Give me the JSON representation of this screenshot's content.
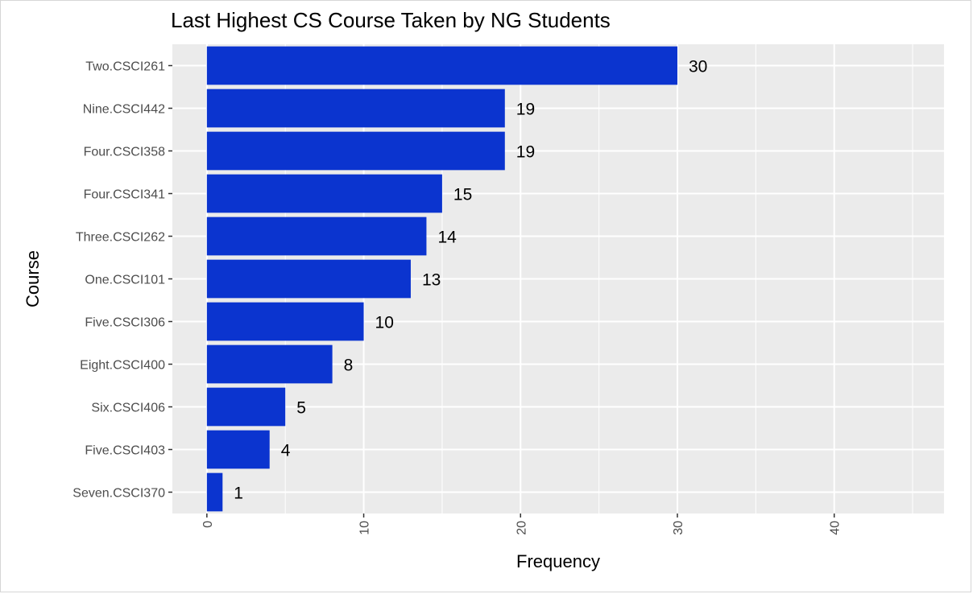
{
  "chart_data": {
    "type": "bar",
    "orientation": "horizontal",
    "title": "Last Highest CS Course Taken by NG Students",
    "xlabel": "Frequency",
    "ylabel": "Course",
    "categories": [
      "Two.CSCI261",
      "Nine.CSCI442",
      "Four.CSCI358",
      "Four.CSCI341",
      "Three.CSCI262",
      "One.CSCI101",
      "Five.CSCI306",
      "Eight.CSCI400",
      "Six.CSCI406",
      "Five.CSCI403",
      "Seven.CSCI370"
    ],
    "values": [
      30,
      19,
      19,
      15,
      14,
      13,
      10,
      8,
      5,
      4,
      1
    ],
    "xlim": [
      -2.2,
      47
    ],
    "xticks": [
      0,
      10,
      20,
      30,
      40
    ],
    "grid": true,
    "colors": {
      "bar": "#0b34cf",
      "panel": "#ebebeb",
      "grid": "#ffffff"
    }
  }
}
